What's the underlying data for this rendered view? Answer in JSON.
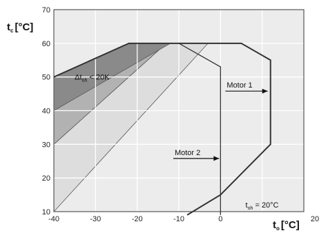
{
  "chart_data": {
    "type": "area",
    "title": "",
    "xlabel": {
      "main": "t",
      "sub": "o",
      "unit": "[°C]"
    },
    "ylabel": {
      "main": "t",
      "sub": "c",
      "unit": "[°C]"
    },
    "xlim": [
      -40,
      20
    ],
    "ylim": [
      10,
      70
    ],
    "x_ticks": [
      -40,
      -30,
      -20,
      -10,
      0,
      20
    ],
    "y_ticks": [
      10,
      20,
      30,
      40,
      50,
      60,
      70
    ],
    "grid": true,
    "series": [
      {
        "points": [
          [
            -40,
            10
          ],
          [
            -40,
            30
          ],
          [
            -13,
            60
          ],
          [
            -3,
            60
          ]
        ],
        "color": "#dddddd"
      },
      {
        "points": [
          [
            -40,
            30
          ],
          [
            -40,
            50
          ],
          [
            -22,
            60
          ],
          [
            -13,
            60
          ]
        ],
        "color": "#b2b2b2"
      },
      {
        "points": [
          [
            -40,
            50
          ],
          [
            -22,
            60
          ],
          [
            -12,
            60
          ],
          [
            -40,
            40
          ]
        ],
        "color": "#8a8a8a"
      }
    ],
    "envelopes": [
      {
        "name": "Motor 1",
        "points": [
          [
            -8,
            9
          ],
          [
            0,
            15
          ],
          [
            12,
            30
          ],
          [
            12,
            55
          ],
          [
            5,
            60
          ],
          [
            -22,
            60
          ],
          [
            -40,
            50
          ]
        ]
      },
      {
        "name": "Motor 2",
        "points": [
          [
            0,
            9
          ],
          [
            0,
            53
          ],
          [
            -10,
            60
          ]
        ]
      }
    ],
    "annotations": [
      {
        "main": "Δt",
        "sub": "oh",
        "rest": " < 20K",
        "x": -35,
        "y": 50
      },
      {
        "main": "t",
        "sub": "oh",
        "rest": " = 20°C",
        "x": 6,
        "y": 12
      }
    ]
  }
}
